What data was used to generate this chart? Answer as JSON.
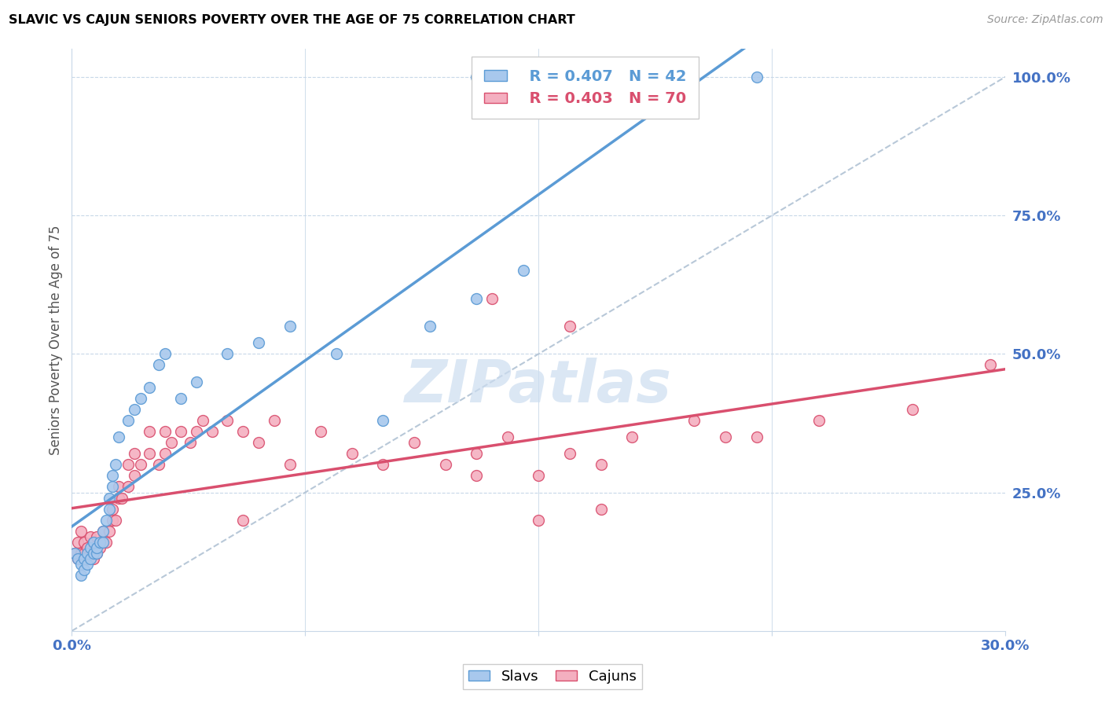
{
  "title": "SLAVIC VS CAJUN SENIORS POVERTY OVER THE AGE OF 75 CORRELATION CHART",
  "source": "Source: ZipAtlas.com",
  "ylabel": "Seniors Poverty Over the Age of 75",
  "xmin": 0.0,
  "xmax": 0.3,
  "ymin": 0.0,
  "ymax": 1.05,
  "legend_r_slavs": "R = 0.407",
  "legend_n_slavs": "N = 42",
  "legend_r_cajuns": "R = 0.403",
  "legend_n_cajuns": "N = 70",
  "slavs_color": "#a8c8ed",
  "cajuns_color": "#f4afc0",
  "slavs_line_color": "#5b9bd5",
  "cajuns_line_color": "#d94f6e",
  "ref_line_color": "#b8c8d8",
  "background_color": "#ffffff",
  "grid_color": "#c8d8e8",
  "title_color": "#000000",
  "axis_label_color": "#4472c4",
  "watermark_color": "#ccddf0",
  "marker_size": 100,
  "slavs_x": [
    0.001,
    0.002,
    0.003,
    0.003,
    0.004,
    0.004,
    0.005,
    0.005,
    0.006,
    0.006,
    0.007,
    0.007,
    0.008,
    0.008,
    0.009,
    0.01,
    0.01,
    0.011,
    0.012,
    0.012,
    0.013,
    0.013,
    0.014,
    0.015,
    0.018,
    0.02,
    0.022,
    0.025,
    0.028,
    0.03,
    0.035,
    0.04,
    0.05,
    0.06,
    0.07,
    0.085,
    0.1,
    0.115,
    0.13,
    0.145,
    0.13,
    0.22
  ],
  "slavs_y": [
    0.14,
    0.13,
    0.1,
    0.12,
    0.11,
    0.13,
    0.12,
    0.14,
    0.13,
    0.15,
    0.14,
    0.16,
    0.14,
    0.15,
    0.16,
    0.16,
    0.18,
    0.2,
    0.22,
    0.24,
    0.26,
    0.28,
    0.3,
    0.35,
    0.38,
    0.4,
    0.42,
    0.44,
    0.48,
    0.5,
    0.42,
    0.45,
    0.5,
    0.52,
    0.55,
    0.5,
    0.38,
    0.55,
    0.6,
    0.65,
    1.0,
    1.0
  ],
  "cajuns_x": [
    0.001,
    0.002,
    0.002,
    0.003,
    0.003,
    0.004,
    0.004,
    0.005,
    0.005,
    0.006,
    0.006,
    0.007,
    0.007,
    0.008,
    0.008,
    0.009,
    0.01,
    0.01,
    0.011,
    0.012,
    0.013,
    0.013,
    0.014,
    0.015,
    0.015,
    0.016,
    0.018,
    0.018,
    0.02,
    0.02,
    0.022,
    0.025,
    0.025,
    0.028,
    0.03,
    0.03,
    0.032,
    0.035,
    0.038,
    0.04,
    0.042,
    0.045,
    0.05,
    0.055,
    0.06,
    0.065,
    0.07,
    0.08,
    0.09,
    0.1,
    0.11,
    0.12,
    0.13,
    0.14,
    0.15,
    0.16,
    0.17,
    0.18,
    0.2,
    0.21,
    0.16,
    0.22,
    0.24,
    0.27,
    0.15,
    0.17,
    0.135,
    0.055,
    0.13,
    0.295
  ],
  "cajuns_y": [
    0.14,
    0.13,
    0.16,
    0.14,
    0.18,
    0.14,
    0.16,
    0.13,
    0.15,
    0.14,
    0.17,
    0.13,
    0.16,
    0.14,
    0.17,
    0.15,
    0.16,
    0.18,
    0.16,
    0.18,
    0.2,
    0.22,
    0.2,
    0.24,
    0.26,
    0.24,
    0.26,
    0.3,
    0.28,
    0.32,
    0.3,
    0.32,
    0.36,
    0.3,
    0.32,
    0.36,
    0.34,
    0.36,
    0.34,
    0.36,
    0.38,
    0.36,
    0.38,
    0.36,
    0.34,
    0.38,
    0.3,
    0.36,
    0.32,
    0.3,
    0.34,
    0.3,
    0.32,
    0.35,
    0.28,
    0.32,
    0.3,
    0.35,
    0.38,
    0.35,
    0.55,
    0.35,
    0.38,
    0.4,
    0.2,
    0.22,
    0.6,
    0.2,
    0.28,
    0.48
  ]
}
